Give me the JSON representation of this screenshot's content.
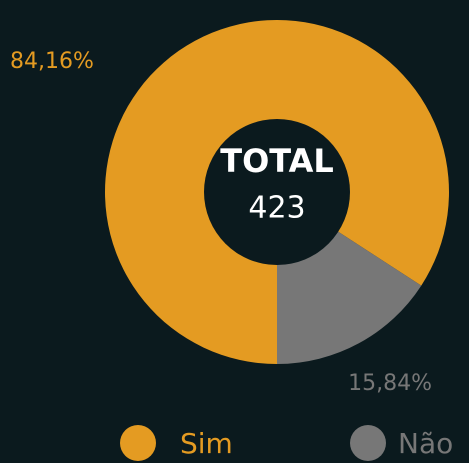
{
  "chart_data": {
    "type": "donut",
    "center_title": "TOTAL",
    "center_value": 423,
    "categories": [
      "Sim",
      "Não"
    ],
    "values": [
      84.16,
      15.84
    ],
    "value_labels": [
      "84,16%",
      "15,84%"
    ],
    "colors": [
      "#e49b22",
      "#777777"
    ]
  }
}
